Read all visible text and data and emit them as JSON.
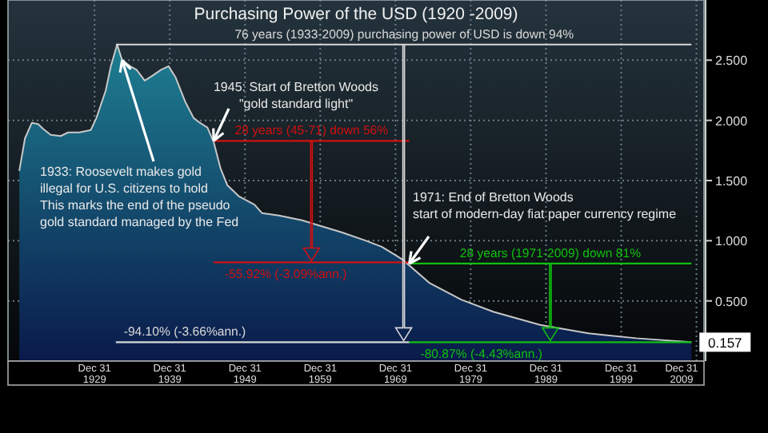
{
  "chart_data": {
    "type": "area",
    "title": "Purchasing Power of the USD (1920 -2009)",
    "x": [
      "1920-01",
      "1920-10",
      "1921-09",
      "1922-07",
      "1923-03",
      "1924-03",
      "1925-07",
      "1926-07",
      "1928-01",
      "1929-07",
      "1930-04",
      "1931-07",
      "1932-03",
      "1933-01",
      "1933-09",
      "1934-10",
      "1935-08",
      "1936-09",
      "1937-09",
      "1938-11",
      "1939-11",
      "1940-10",
      "1942-02",
      "1943-03",
      "1944-01",
      "1945-01",
      "1945-11",
      "1946-10",
      "1947-09",
      "1949-03",
      "1951-04",
      "1952-04",
      "1954-07",
      "1957-08",
      "1959-09",
      "1962-11",
      "1966-02",
      "1968-03",
      "1970-01",
      "1971-01",
      "1974-07",
      "1978-10",
      "1983-01",
      "1989-04",
      "1995-09",
      "2002-01",
      "2009-05"
    ],
    "series": [
      {
        "color": "#1e7f92",
        "values": [
          1.58,
          1.85,
          1.98,
          1.97,
          1.93,
          1.88,
          1.87,
          1.9,
          1.9,
          1.92,
          2.02,
          2.25,
          2.45,
          2.63,
          2.5,
          2.45,
          2.42,
          2.33,
          2.37,
          2.42,
          2.45,
          2.36,
          2.15,
          2.02,
          1.98,
          1.94,
          1.82,
          1.6,
          1.46,
          1.37,
          1.3,
          1.23,
          1.21,
          1.17,
          1.13,
          1.07,
          1.0,
          0.95,
          0.88,
          0.84,
          0.65,
          0.51,
          0.41,
          0.3,
          0.23,
          0.19,
          0.157
        ],
        "value_labels": [
          null,
          null,
          null,
          null,
          null,
          null,
          null,
          null,
          null,
          null,
          null,
          null,
          null,
          null,
          null,
          null,
          null,
          null,
          null,
          null,
          null,
          null,
          null,
          null,
          null,
          null,
          null,
          null,
          null,
          null,
          null,
          null,
          null,
          null,
          null,
          null,
          null,
          null,
          null,
          null,
          null,
          null,
          null,
          null,
          null,
          null,
          "0.157"
        ]
      },
      {
        "type": "line",
        "color": "#d8d8d8",
        "x": [
          "1932-11",
          "2009-05"
        ],
        "values": [
          2.63,
          2.63
        ]
      },
      {
        "type": "line",
        "color": "#d8d8d8",
        "x": [
          "1932-11",
          "1971-11"
        ],
        "values": [
          0.157,
          0.157
        ]
      },
      {
        "type": "line",
        "color": "#d01010",
        "x": [
          "1945-11",
          "1971-11"
        ],
        "values": [
          1.83,
          1.83
        ]
      },
      {
        "type": "line",
        "color": "#d01010",
        "x": [
          "1945-11",
          "1971-11"
        ],
        "values": [
          0.82,
          0.82
        ]
      },
      {
        "type": "line",
        "color": "#10c010",
        "x": [
          "1971-11",
          "2009-05"
        ],
        "values": [
          0.81,
          0.81
        ]
      },
      {
        "type": "line",
        "color": "#10c010",
        "x": [
          "1971-11",
          "2009-05"
        ],
        "values": [
          0.157,
          0.157
        ]
      }
    ],
    "xlim": [
      "1918-07",
      "2011-01"
    ],
    "xticks": [
      {
        "value": "1929-12-31",
        "label": "Dec 31\n1929"
      },
      {
        "value": "1939-12-31",
        "label": "Dec 31\n1939"
      },
      {
        "value": "1949-12-31",
        "label": "Dec 31\n1949"
      },
      {
        "value": "1959-12-31",
        "label": "Dec 31\n1959"
      },
      {
        "value": "1969-12-31",
        "label": "Dec 31\n1969"
      },
      {
        "value": "1979-12-31",
        "label": "Dec 31\n1979"
      },
      {
        "value": "1989-12-31",
        "label": "Dec 31\n1989"
      },
      {
        "value": "1999-12-31",
        "label": "Dec 31\n1999"
      },
      {
        "value": "2009-12-31",
        "label": "Dec 31\n2009"
      }
    ],
    "ylim": [
      0,
      3.0
    ],
    "yticks": [
      {
        "value": 0.5,
        "label": "0.500"
      },
      {
        "value": 1,
        "label": "1.000"
      },
      {
        "value": 1.5,
        "label": "1.500"
      },
      {
        "value": 2,
        "label": "2.000"
      },
      {
        "value": 2.5,
        "label": "2.500"
      }
    ],
    "grid": true,
    "annotations": [
      {
        "text": "1933: Roosevelt makes gold\nillegal for U.S. citizens to hold\nThis marks the end of the pseudo\ngold standard managed by the Fed",
        "x": "1933-09",
        "y": 2.5
      },
      {
        "text": "1945: Start of Bretton Woods\n\"gold standard light\"",
        "x": "1945-11",
        "y": 1.83
      },
      {
        "text": "1971: End of Bretton Woods\nstart of modern-day fiat paper currency regime",
        "x": "1971-11",
        "y": 0.81
      },
      {
        "text": "76 years (1933-2009) purchasing power of USD is down 94%",
        "x": "1971-03",
        "y": 2.63
      },
      {
        "text": "28 years (45-71) down 56%",
        "x": "1958-11",
        "y": 1.83
      },
      {
        "text": "28 years (1971-2009) down 81%",
        "x": "1990-08",
        "y": 0.81
      },
      {
        "text": "-55.92% (-3.09%ann.)",
        "x": "1955-06",
        "y": 0.82
      },
      {
        "text": "-94.10% (-3.66%ann.)",
        "x": "1942-01",
        "y": 0.157
      },
      {
        "text": "-80.87% (-4.43%ann.)",
        "x": "1981-06",
        "y": 0.157
      }
    ]
  }
}
